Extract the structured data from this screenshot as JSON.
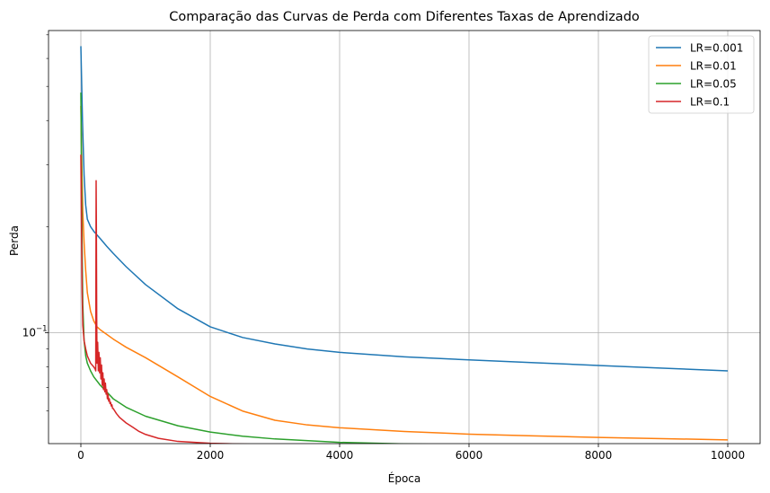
{
  "chart_data": {
    "type": "line",
    "title": "Comparação das Curvas de Perda com Diferentes Taxas de Aprendizado",
    "xlabel": "Época",
    "ylabel": "Perda",
    "xlim": [
      -500,
      10500
    ],
    "ylim": [
      0.0485,
      0.72
    ],
    "yscale": "log",
    "x_ticks": [
      0,
      2000,
      4000,
      6000,
      8000,
      10000
    ],
    "x_tick_labels": [
      "0",
      "2000",
      "4000",
      "6000",
      "8000",
      "10000"
    ],
    "y_major_tick": 0.1,
    "y_major_tick_label": "10",
    "y_major_tick_exponent": "−1",
    "y_minor_ticks": [
      0.06,
      0.07,
      0.08,
      0.09,
      0.2,
      0.3,
      0.4,
      0.5,
      0.6,
      0.7
    ],
    "grid": true,
    "legend_position": "top-right",
    "series": [
      {
        "name": "LR=0.001",
        "color": "#1f77b4",
        "x": [
          0,
          25,
          50,
          75,
          100,
          150,
          200,
          300,
          400,
          500,
          700,
          1000,
          1500,
          2000,
          2500,
          3000,
          3500,
          4000,
          5000,
          6000,
          7000,
          8000,
          9000,
          10000
        ],
        "y": [
          0.65,
          0.4,
          0.28,
          0.23,
          0.21,
          0.2,
          0.194,
          0.185,
          0.176,
          0.168,
          0.154,
          0.137,
          0.117,
          0.104,
          0.097,
          0.093,
          0.09,
          0.088,
          0.0855,
          0.0838,
          0.0823,
          0.0808,
          0.0794,
          0.078
        ]
      },
      {
        "name": "LR=0.01",
        "color": "#ff7f0e",
        "x": [
          0,
          15,
          30,
          50,
          75,
          100,
          150,
          200,
          250,
          300,
          400,
          500,
          700,
          1000,
          1500,
          2000,
          2500,
          3000,
          3500,
          4000,
          5000,
          6000,
          7000,
          8000,
          9000,
          10000
        ],
        "y": [
          0.44,
          0.3,
          0.22,
          0.18,
          0.15,
          0.13,
          0.115,
          0.108,
          0.104,
          0.102,
          0.099,
          0.096,
          0.091,
          0.085,
          0.075,
          0.066,
          0.06,
          0.0565,
          0.0548,
          0.0538,
          0.0525,
          0.0516,
          0.051,
          0.0505,
          0.0501,
          0.0497
        ]
      },
      {
        "name": "LR=0.05",
        "color": "#2ca02c",
        "x": [
          0,
          10,
          20,
          30,
          50,
          75,
          100,
          150,
          200,
          300,
          400,
          500,
          700,
          1000,
          1500,
          2000,
          2500,
          3000,
          4000,
          5000,
          6000,
          7000,
          8000,
          9000,
          10000
        ],
        "y": [
          0.48,
          0.3,
          0.17,
          0.12,
          0.095,
          0.086,
          0.082,
          0.078,
          0.075,
          0.071,
          0.068,
          0.065,
          0.0615,
          0.058,
          0.0545,
          0.0523,
          0.0509,
          0.05,
          0.0489,
          0.0484,
          0.0481,
          0.048,
          0.0479,
          0.0479,
          0.0478
        ]
      },
      {
        "name": "LR=0.1",
        "color": "#d62728",
        "x": [
          0,
          10,
          20,
          30,
          50,
          75,
          100,
          150,
          200,
          220,
          230,
          236,
          240,
          245,
          250,
          260,
          270,
          280,
          290,
          300,
          310,
          320,
          330,
          340,
          350,
          360,
          370,
          380,
          390,
          400,
          410,
          420,
          430,
          440,
          450,
          460,
          470,
          480,
          490,
          500,
          550,
          600,
          700,
          800,
          900,
          1000,
          1200,
          1500,
          2000,
          3000,
          4000,
          6000,
          8000,
          10000
        ],
        "y": [
          0.32,
          0.2,
          0.13,
          0.105,
          0.095,
          0.09,
          0.086,
          0.082,
          0.08,
          0.079,
          0.078,
          0.27,
          0.2,
          0.11,
          0.082,
          0.094,
          0.078,
          0.088,
          0.077,
          0.085,
          0.074,
          0.081,
          0.071,
          0.077,
          0.069,
          0.074,
          0.068,
          0.072,
          0.067,
          0.069,
          0.065,
          0.067,
          0.064,
          0.065,
          0.063,
          0.0635,
          0.062,
          0.0625,
          0.061,
          0.061,
          0.059,
          0.0575,
          0.0555,
          0.054,
          0.0525,
          0.0515,
          0.0502,
          0.0492,
          0.0486,
          0.0481,
          0.0479,
          0.0478,
          0.0478,
          0.0478
        ]
      }
    ]
  }
}
